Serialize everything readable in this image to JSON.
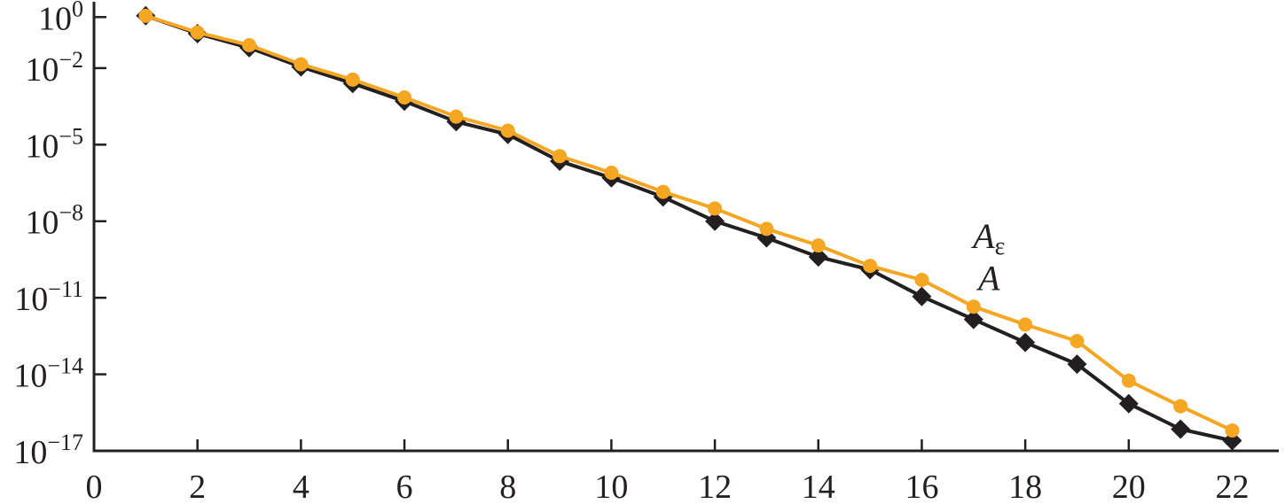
{
  "chart_data": {
    "type": "line",
    "title": "",
    "xlabel": "",
    "ylabel": "",
    "xlim": [
      0,
      22.9
    ],
    "ylim_log10": [
      -17,
      0.6
    ],
    "y_scale": "log",
    "grid": false,
    "x_ticks": [
      {
        "value": 0,
        "label": "0"
      },
      {
        "value": 2,
        "label": "2"
      },
      {
        "value": 4,
        "label": "4"
      },
      {
        "value": 6,
        "label": "6"
      },
      {
        "value": 8,
        "label": "8"
      },
      {
        "value": 10,
        "label": "10"
      },
      {
        "value": 12,
        "label": "12"
      },
      {
        "value": 14,
        "label": "14"
      },
      {
        "value": 16,
        "label": "16"
      },
      {
        "value": 18,
        "label": "18"
      },
      {
        "value": 20,
        "label": "20"
      },
      {
        "value": 22,
        "label": "22"
      }
    ],
    "y_ticks": [
      {
        "exp": 0,
        "base": "10",
        "exponent": "0"
      },
      {
        "exp": -2,
        "base": "10",
        "exponent": "−2"
      },
      {
        "exp": -5,
        "base": "10",
        "exponent": "−5"
      },
      {
        "exp": -8,
        "base": "10",
        "exponent": "−8"
      },
      {
        "exp": -11,
        "base": "10",
        "exponent": "−11"
      },
      {
        "exp": -14,
        "base": "10",
        "exponent": "−14"
      },
      {
        "exp": -17,
        "base": "10",
        "exponent": "−17"
      }
    ],
    "x": [
      1,
      2,
      3,
      4,
      5,
      6,
      7,
      8,
      9,
      10,
      11,
      12,
      13,
      14,
      15,
      16,
      17,
      18,
      19,
      20,
      21,
      22
    ],
    "series": [
      {
        "key": "A",
        "label_main": "A",
        "label_sub": "",
        "label_at": [
          17.3,
          -10.7
        ],
        "color": "#231f20",
        "marker": "diamond",
        "y_log10": [
          0.05,
          -0.65,
          -1.2,
          -1.95,
          -2.6,
          -3.3,
          -4.1,
          -4.6,
          -5.65,
          -6.3,
          -7.05,
          -8.0,
          -8.65,
          -9.4,
          -9.9,
          -10.95,
          -11.85,
          -12.75,
          -13.6,
          -15.15,
          -16.15,
          -16.6
        ]
      },
      {
        "key": "A_eps",
        "label_main": "A",
        "label_sub": "ε",
        "label_at": [
          17.3,
          -9.05
        ],
        "color": "#f5a623",
        "marker": "circle",
        "y_log10": [
          0.05,
          -0.6,
          -1.1,
          -1.85,
          -2.45,
          -3.15,
          -3.9,
          -4.45,
          -5.45,
          -6.1,
          -6.85,
          -7.5,
          -8.3,
          -8.95,
          -9.75,
          -10.3,
          -11.35,
          -12.05,
          -12.7,
          -14.25,
          -15.25,
          -16.2
        ]
      }
    ]
  }
}
